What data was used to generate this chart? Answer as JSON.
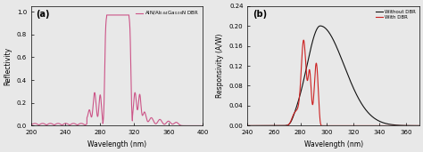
{
  "panel_a": {
    "label": "AlN/Al$_{0.64}$Ga$_{0.36}$N DBR",
    "color": "#cc5588",
    "xlabel": "Wavelength (nm)",
    "ylabel": "Reflectivity",
    "xlim": [
      200,
      400
    ],
    "ylim": [
      0,
      1.05
    ],
    "xticks": [
      200,
      240,
      280,
      320,
      360,
      400
    ],
    "yticks": [
      0.0,
      0.2,
      0.4,
      0.6,
      0.8,
      1.0
    ],
    "panel_label": "(a)"
  },
  "panel_b": {
    "labels": [
      "Without DBR",
      "With DBR"
    ],
    "colors": [
      "#111111",
      "#cc2222"
    ],
    "xlabel": "Wavelength (nm)",
    "ylabel": "Responsivity (A/W)",
    "xlim": [
      240,
      370
    ],
    "ylim": [
      0,
      0.24
    ],
    "xticks": [
      240,
      260,
      280,
      300,
      320,
      340,
      360
    ],
    "yticks": [
      0.0,
      0.04,
      0.08,
      0.12,
      0.16,
      0.2,
      0.24
    ],
    "panel_label": "(b)"
  }
}
